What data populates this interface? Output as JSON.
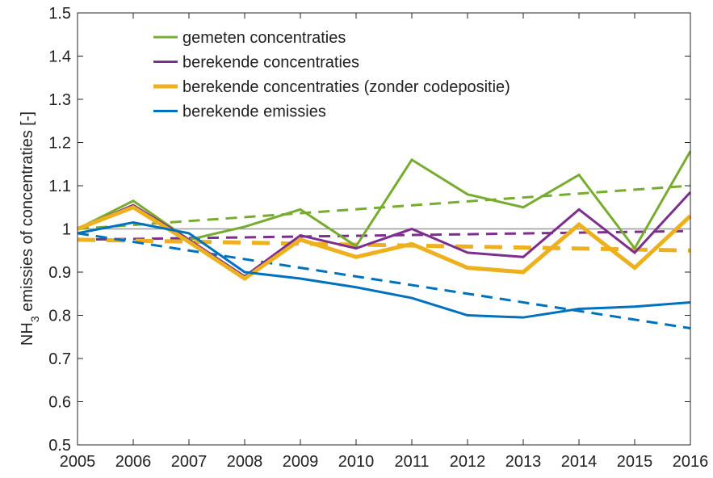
{
  "chart_data": {
    "type": "line",
    "ylabel": {
      "main": "NH",
      "sub": "3",
      "rest": " emissies of concentraties [-]"
    },
    "x": [
      2005,
      2006,
      2007,
      2008,
      2009,
      2010,
      2011,
      2012,
      2013,
      2014,
      2015,
      2016
    ],
    "xlim": [
      2005,
      2016
    ],
    "xticks": [
      2005,
      2006,
      2007,
      2008,
      2009,
      2010,
      2011,
      2012,
      2013,
      2014,
      2015,
      2016
    ],
    "ylim": [
      0.5,
      1.5
    ],
    "yticks": [
      0.5,
      0.6,
      0.7,
      0.8,
      0.9,
      1,
      1.1,
      1.2,
      1.3,
      1.4,
      1.5
    ],
    "reference_line": 1,
    "legend": "upper left",
    "series": [
      {
        "name": "gemeten concentraties",
        "color": "#77ac30",
        "line_width": 3,
        "values": [
          1.0,
          1.065,
          0.975,
          1.005,
          1.045,
          0.96,
          1.16,
          1.08,
          1.05,
          1.125,
          0.955,
          1.18
        ]
      },
      {
        "name": "berekende concentraties",
        "color": "#7e2f8e",
        "line_width": 3,
        "values": [
          1.0,
          1.055,
          0.975,
          0.89,
          0.985,
          0.955,
          1.0,
          0.945,
          0.935,
          1.045,
          0.945,
          1.085
        ]
      },
      {
        "name": "berekende concentraties (zonder codepositie)",
        "color": "#edb120",
        "line_width": 5,
        "values": [
          1.0,
          1.05,
          0.97,
          0.885,
          0.975,
          0.935,
          0.965,
          0.91,
          0.9,
          1.01,
          0.91,
          1.03
        ]
      },
      {
        "name": "berekende emissies",
        "color": "#0072bd",
        "line_width": 3,
        "values": [
          0.99,
          1.015,
          0.99,
          0.9,
          0.885,
          0.865,
          0.84,
          0.8,
          0.795,
          0.815,
          0.82,
          0.83
        ]
      }
    ],
    "trends": [
      {
        "color": "#77ac30",
        "line_width": 3,
        "x": [
          2005,
          2016
        ],
        "values": [
          1.0,
          1.1
        ]
      },
      {
        "color": "#7e2f8e",
        "line_width": 3,
        "x": [
          2005,
          2016
        ],
        "values": [
          0.975,
          0.995
        ]
      },
      {
        "color": "#edb120",
        "line_width": 5,
        "x": [
          2005,
          2016
        ],
        "values": [
          0.975,
          0.95
        ]
      },
      {
        "color": "#0072bd",
        "line_width": 3,
        "x": [
          2005,
          2016
        ],
        "values": [
          0.99,
          0.77
        ]
      }
    ]
  }
}
